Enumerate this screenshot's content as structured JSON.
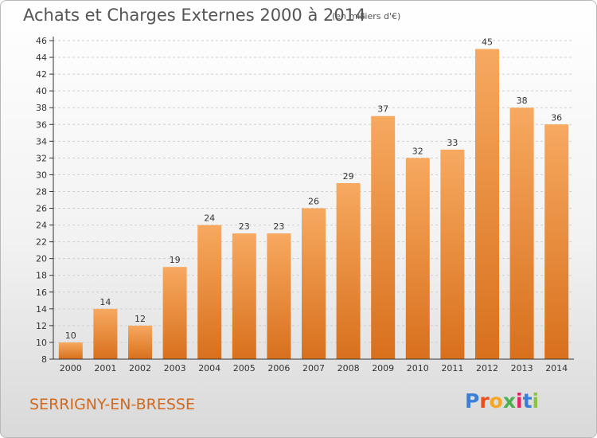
{
  "header": {
    "title": "Achats et Charges Externes 2000 à 2014",
    "unit": "(en milliers d'€)"
  },
  "footer": {
    "commune": "SERRIGNY-EN-BRESSE",
    "logo": {
      "letters": [
        "P",
        "r",
        "o",
        "x",
        "i",
        "t",
        "i"
      ],
      "colors": [
        "#3a7fd5",
        "#e94e1b",
        "#f5a623",
        "#4caf50",
        "#e91e63",
        "#3a7fd5",
        "#8bc34a"
      ]
    }
  },
  "colors": {
    "bar_top": "#f7a960",
    "bar_bottom": "#d8701c",
    "grid": "#cfcfcf",
    "axis": "#333333"
  },
  "chart_data": {
    "type": "bar",
    "title": "Achats et Charges Externes 2000 à 2014",
    "subtitle": "(en milliers d'€)",
    "categories": [
      "2000",
      "2001",
      "2002",
      "2003",
      "2004",
      "2005",
      "2006",
      "2007",
      "2008",
      "2009",
      "2010",
      "2011",
      "2012",
      "2013",
      "2014"
    ],
    "values": [
      10,
      14,
      12,
      19,
      24,
      23,
      23,
      26,
      29,
      37,
      32,
      33,
      45,
      38,
      36
    ],
    "ylim": [
      8,
      46
    ],
    "yticks": [
      8,
      10,
      12,
      14,
      16,
      18,
      20,
      22,
      24,
      26,
      28,
      30,
      32,
      34,
      36,
      38,
      40,
      42,
      44,
      46
    ],
    "grid": true,
    "legend": "none"
  }
}
